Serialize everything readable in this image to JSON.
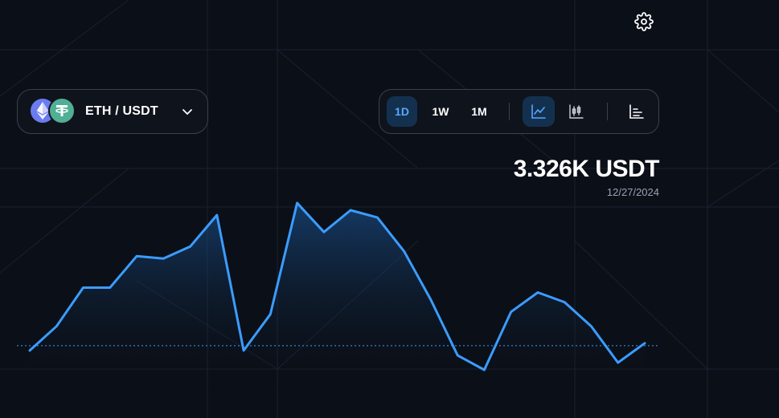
{
  "header": {
    "settings_icon": "gear-icon"
  },
  "pair_selector": {
    "label": "ETH / USDT",
    "base_icon": "eth-icon",
    "quote_icon": "usdt-icon",
    "chevron_icon": "chevron-down-icon"
  },
  "toolbar": {
    "ranges": [
      {
        "label": "1D",
        "active": true
      },
      {
        "label": "1W",
        "active": false
      },
      {
        "label": "1M",
        "active": false
      }
    ],
    "chart_types": [
      {
        "icon": "line-chart-icon",
        "active": true
      },
      {
        "icon": "candlestick-chart-icon",
        "active": false
      }
    ],
    "extra_icon": "bar-chart-icon"
  },
  "price_display": {
    "value": "3.326K USDT",
    "date": "12/27/2024"
  },
  "colors": {
    "accent": "#3b9cff",
    "background": "#0b0f17",
    "active_button_bg": "#13314f",
    "eth": "#6b7cf0",
    "usdt": "#50af95"
  },
  "chart_data": {
    "type": "area",
    "values": [
      3.284,
      3.294,
      3.31,
      3.31,
      3.323,
      3.322,
      3.327,
      3.34,
      3.284,
      3.299,
      3.345,
      3.333,
      3.342,
      3.339,
      3.325,
      3.305,
      3.282,
      3.276,
      3.3,
      3.308,
      3.304,
      3.294,
      3.279,
      3.287
    ],
    "reference_value": 3.286,
    "grid": false
  }
}
